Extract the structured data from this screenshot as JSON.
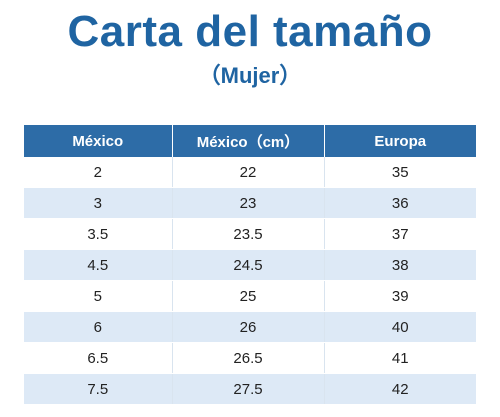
{
  "header": {
    "title": "Carta del tamaño",
    "subtitle": "（Mujer）"
  },
  "table": {
    "columns": [
      "México",
      "México（cm）",
      "Europa"
    ],
    "rows": [
      [
        "2",
        "22",
        "35"
      ],
      [
        "3",
        "23",
        "36"
      ],
      [
        "3.5",
        "23.5",
        "37"
      ],
      [
        "4.5",
        "24.5",
        "38"
      ],
      [
        "5",
        "25",
        "39"
      ],
      [
        "6",
        "26",
        "40"
      ],
      [
        "6.5",
        "26.5",
        "41"
      ],
      [
        "7.5",
        "27.5",
        "42"
      ]
    ]
  },
  "colors": {
    "title": "#1f64a2",
    "header_bg": "#2d6ca7",
    "stripe_bg": "#dde9f6"
  }
}
